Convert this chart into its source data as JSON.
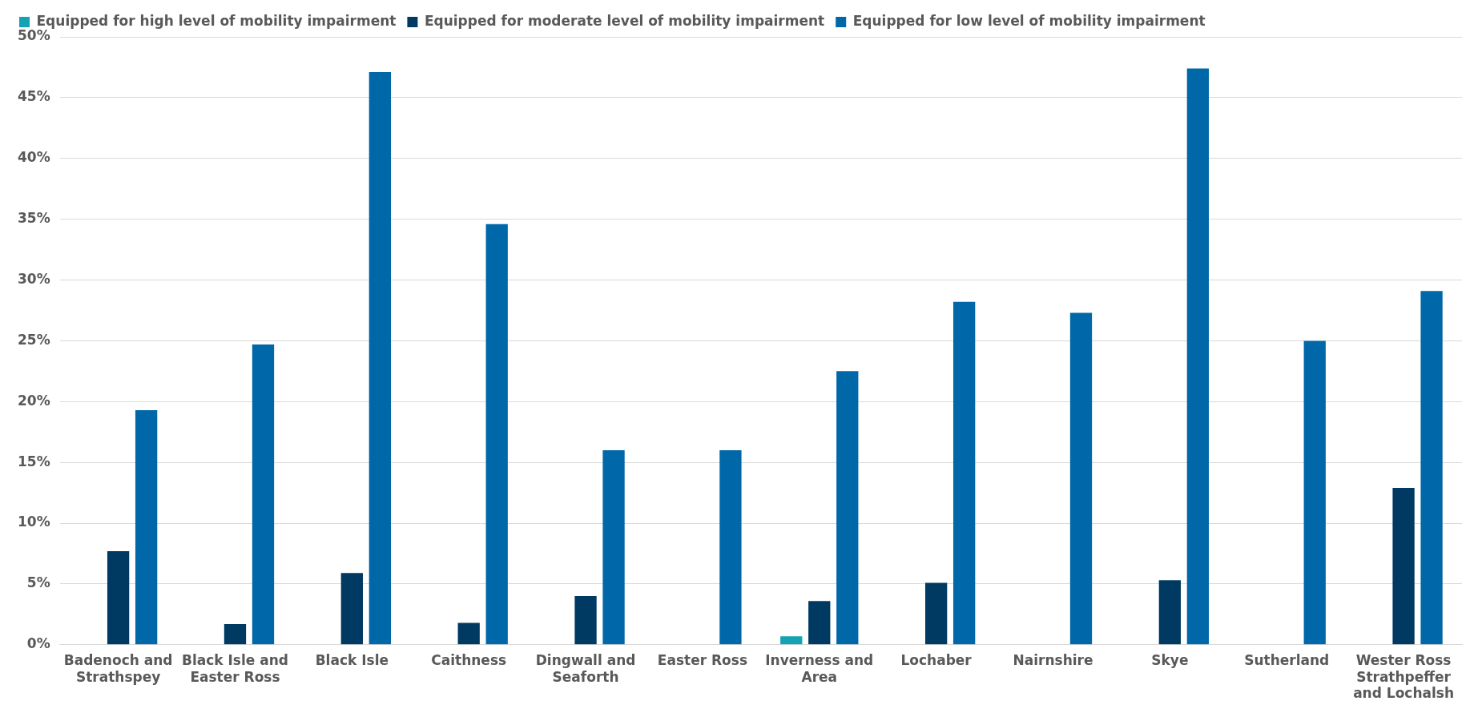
{
  "chart_data": {
    "type": "bar",
    "categories": [
      "Badenoch and Strathspey",
      "Black Isle and Easter Ross",
      "Black Isle",
      "Caithness",
      "Dingwall and Seaforth",
      "Easter Ross",
      "Inverness and Area",
      "Lochaber",
      "Nairnshire",
      "Skye",
      "Sutherland",
      "Wester Ross Strathpeffer and Lochalsh"
    ],
    "series": [
      {
        "name": "Equipped for high level of mobility impairment",
        "color": "#14a3b3",
        "values": [
          0,
          0,
          0,
          0,
          0,
          0,
          0.7,
          0,
          0,
          0,
          0,
          0
        ]
      },
      {
        "name": "Equipped for moderate level of mobility impairment",
        "color": "#003a63",
        "values": [
          7.7,
          1.7,
          5.9,
          1.8,
          4.0,
          0,
          3.6,
          5.1,
          0,
          5.3,
          0,
          12.9
        ]
      },
      {
        "name": "Equipped for low level of mobility impairment",
        "color": "#0068a8",
        "values": [
          19.3,
          24.7,
          47.1,
          34.6,
          16.0,
          16.0,
          22.5,
          28.2,
          27.3,
          47.4,
          25.0,
          29.1
        ]
      }
    ],
    "ylim": [
      0,
      50
    ],
    "yticks": [
      {
        "value": 0,
        "label": "0%"
      },
      {
        "value": 5,
        "label": "5%"
      },
      {
        "value": 10,
        "label": "10%"
      },
      {
        "value": 15,
        "label": "15%"
      },
      {
        "value": 20,
        "label": "20%"
      },
      {
        "value": 25,
        "label": "25%"
      },
      {
        "value": 30,
        "label": "30%"
      },
      {
        "value": 35,
        "label": "35%"
      },
      {
        "value": 40,
        "label": "40%"
      },
      {
        "value": 45,
        "label": "45%"
      },
      {
        "value": 50,
        "label": "50%"
      }
    ],
    "grid": "y",
    "legend": "top left"
  }
}
